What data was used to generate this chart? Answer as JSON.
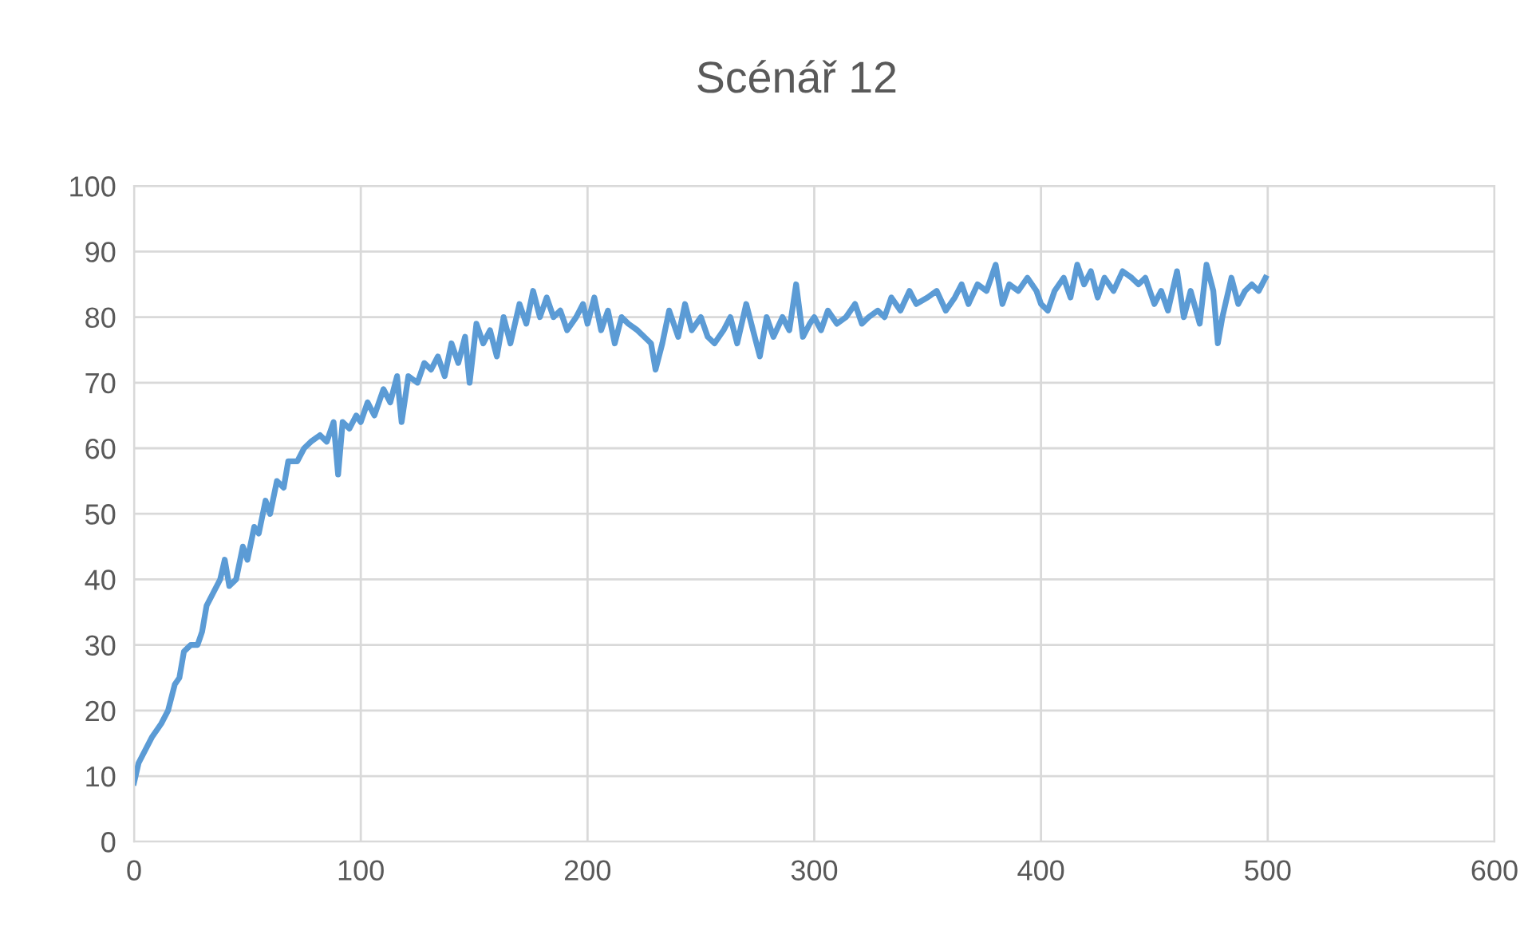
{
  "chart_data": {
    "type": "line",
    "title": "Scénář 12",
    "xlim": [
      0,
      600
    ],
    "xticks": [
      0,
      100,
      200,
      300,
      400,
      500,
      600
    ],
    "ylim": [
      0,
      100
    ],
    "yticks": [
      0,
      10,
      20,
      30,
      40,
      50,
      60,
      70,
      80,
      90,
      100
    ],
    "grid": true,
    "legend": false,
    "marker": "none",
    "line_style": "solid",
    "series": [
      {
        "color": "#5b9bd5",
        "x": [
          0,
          2,
          5,
          8,
          12,
          15,
          18,
          20,
          22,
          25,
          28,
          30,
          32,
          35,
          38,
          40,
          42,
          45,
          48,
          50,
          53,
          55,
          58,
          60,
          63,
          66,
          68,
          72,
          75,
          78,
          82,
          85,
          88,
          90,
          92,
          95,
          98,
          100,
          103,
          106,
          110,
          113,
          116,
          118,
          121,
          125,
          128,
          131,
          134,
          137,
          140,
          143,
          146,
          148,
          151,
          154,
          157,
          160,
          163,
          166,
          170,
          173,
          176,
          179,
          182,
          185,
          188,
          191,
          195,
          198,
          200,
          203,
          206,
          209,
          212,
          215,
          218,
          222,
          225,
          228,
          230,
          233,
          236,
          240,
          243,
          246,
          250,
          253,
          256,
          260,
          263,
          266,
          270,
          273,
          276,
          279,
          282,
          286,
          289,
          292,
          295,
          298,
          300,
          303,
          306,
          310,
          314,
          318,
          321,
          324,
          328,
          331,
          334,
          338,
          342,
          345,
          350,
          354,
          358,
          362,
          365,
          368,
          372,
          376,
          380,
          383,
          386,
          390,
          394,
          398,
          400,
          403,
          406,
          410,
          413,
          416,
          419,
          422,
          425,
          428,
          432,
          436,
          440,
          443,
          446,
          450,
          453,
          456,
          460,
          463,
          466,
          470,
          473,
          476,
          478,
          480,
          484,
          487,
          490,
          493,
          496,
          499
        ],
        "values": [
          9,
          12,
          14,
          16,
          18,
          20,
          24,
          25,
          29,
          30,
          30,
          32,
          36,
          38,
          40,
          43,
          39,
          40,
          45,
          43,
          48,
          47,
          52,
          50,
          55,
          54,
          58,
          58,
          60,
          61,
          62,
          61,
          64,
          56,
          64,
          63,
          65,
          64,
          67,
          65,
          69,
          67,
          71,
          64,
          71,
          70,
          73,
          72,
          74,
          71,
          76,
          73,
          77,
          70,
          79,
          76,
          78,
          74,
          80,
          76,
          82,
          79,
          84,
          80,
          83,
          80,
          81,
          78,
          80,
          82,
          79,
          83,
          78,
          81,
          76,
          80,
          79,
          78,
          77,
          76,
          72,
          76,
          81,
          77,
          82,
          78,
          80,
          77,
          76,
          78,
          80,
          76,
          82,
          78,
          74,
          80,
          77,
          80,
          78,
          85,
          77,
          79,
          80,
          78,
          81,
          79,
          80,
          82,
          79,
          80,
          81,
          80,
          83,
          81,
          84,
          82,
          83,
          84,
          81,
          83,
          85,
          82,
          85,
          84,
          88,
          82,
          85,
          84,
          86,
          84,
          82,
          81,
          84,
          86,
          83,
          88,
          85,
          87,
          83,
          86,
          84,
          87,
          86,
          85,
          86,
          82,
          84,
          81,
          87,
          80,
          84,
          79,
          88,
          84,
          76,
          80,
          86,
          82,
          84,
          85,
          84,
          86
        ]
      }
    ]
  }
}
